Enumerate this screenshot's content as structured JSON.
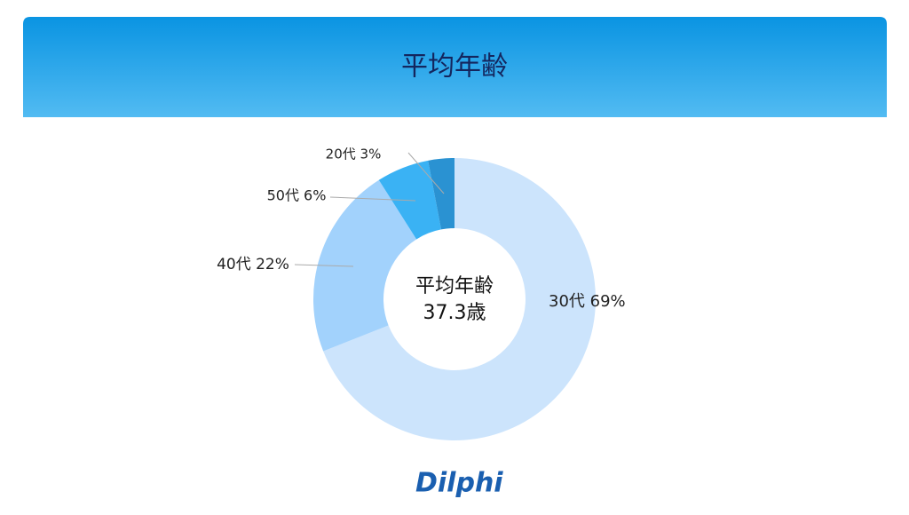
{
  "header": {
    "title": "平均年齢"
  },
  "chart_data": {
    "type": "donut",
    "center_text": [
      "平均年齢",
      "37.3歳"
    ],
    "values": [
      69,
      22,
      6,
      3
    ],
    "value_labels": [
      "30代 69%",
      "40代 22%",
      "50代 6%",
      "20代 3%"
    ],
    "colors": [
      "#cce4fc",
      "#a2d2fc",
      "#3ab2f4",
      "#2a92d2"
    ]
  },
  "footer": {
    "logo": "Dilphi"
  }
}
